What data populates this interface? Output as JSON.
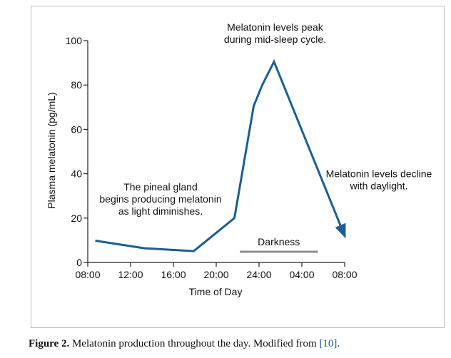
{
  "chart_data": {
    "type": "line",
    "ylabel": "Plasma melatonin (pg/mL)",
    "xlabel": "Time of Day",
    "ylim": [
      0,
      100
    ],
    "yticks": [
      0,
      20,
      40,
      60,
      80,
      100
    ],
    "xticks": [
      "08:00",
      "12:00",
      "16:00",
      "20:00",
      "24:00",
      "04:00",
      "08:00"
    ],
    "xlim_hours": [
      0,
      24
    ],
    "x_unit": "hours after 08:00",
    "series": [
      {
        "color": "#1b5f92",
        "x": [
          0.7,
          5.3,
          9.9,
          13.7,
          15.5,
          16.3,
          17.4,
          24.0
        ],
        "y": [
          9.8,
          6.4,
          5.1,
          20.0,
          70.5,
          80.0,
          90.5,
          12.0
        ]
      }
    ],
    "darkness_band": {
      "label": "Darkness",
      "x_start": 14.2,
      "x_end": 21.5,
      "color": "#8c8c8c"
    },
    "annotations": [
      {
        "lines": [
          "Melatonin levels peak",
          "during mid-sleep cycle."
        ],
        "x": 17.5,
        "y": 100
      },
      {
        "lines": [
          "Melatonin levels decline",
          "with daylight."
        ],
        "x": 27.2,
        "y": 34
      },
      {
        "lines": [
          "The pineal gland",
          "begins producing melatonin",
          "as light diminishes."
        ],
        "x": 6.8,
        "y": 28
      }
    ],
    "grid": false
  },
  "caption": {
    "label": "Figure 2.",
    "text": " Melatonin production throughout the day. Modified from ",
    "ref": "[10]",
    "end": "."
  }
}
